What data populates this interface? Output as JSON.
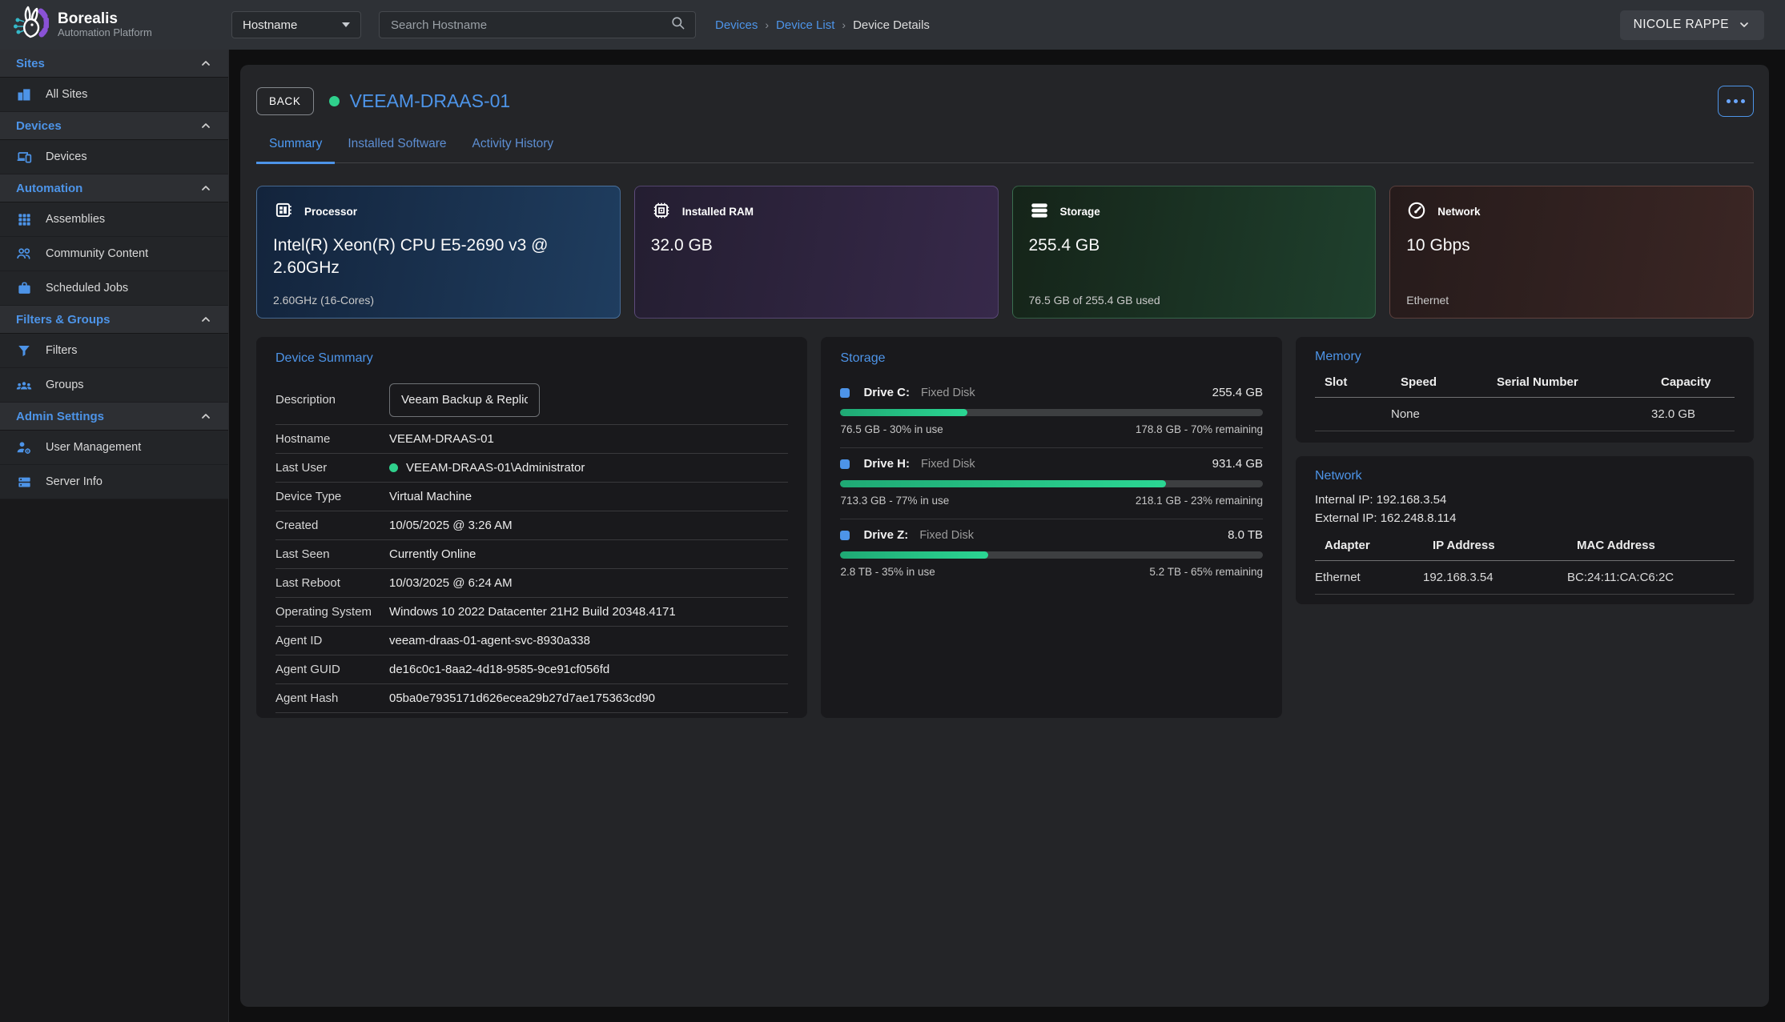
{
  "app": {
    "name": "Borealis",
    "subtitle": "Automation Platform"
  },
  "topbar": {
    "filter_select": {
      "value": "Hostname"
    },
    "search": {
      "placeholder": "Search Hostname"
    },
    "breadcrumbs": [
      {
        "label": "Devices"
      },
      {
        "label": "Device List"
      },
      {
        "label": "Device Details"
      }
    ],
    "user": {
      "name": "NICOLE RAPPE"
    }
  },
  "sidebar": {
    "sections": [
      {
        "label": "Sites",
        "items": [
          {
            "label": "All Sites",
            "icon": "buildings-icon"
          }
        ]
      },
      {
        "label": "Devices",
        "items": [
          {
            "label": "Devices",
            "icon": "devices-icon"
          }
        ]
      },
      {
        "label": "Automation",
        "items": [
          {
            "label": "Assemblies",
            "icon": "grid-icon"
          },
          {
            "label": "Community Content",
            "icon": "people-icon"
          },
          {
            "label": "Scheduled Jobs",
            "icon": "briefcase-icon"
          }
        ]
      },
      {
        "label": "Filters & Groups",
        "items": [
          {
            "label": "Filters",
            "icon": "filter-icon"
          },
          {
            "label": "Groups",
            "icon": "groups-icon"
          }
        ]
      },
      {
        "label": "Admin Settings",
        "items": [
          {
            "label": "User Management",
            "icon": "user-gear-icon"
          },
          {
            "label": "Server Info",
            "icon": "server-icon"
          }
        ]
      }
    ]
  },
  "device": {
    "back_label": "BACK",
    "name": "VEEAM-DRAAS-01",
    "status": "online",
    "tabs": [
      {
        "label": "Summary",
        "active": true
      },
      {
        "label": "Installed Software",
        "active": false
      },
      {
        "label": "Activity History",
        "active": false
      }
    ]
  },
  "stat_cards": [
    {
      "icon": "cpu-icon",
      "label": "Processor",
      "value": "Intel(R) Xeon(R) CPU E5-2690 v3 @ 2.60GHz",
      "subtext": "2.60GHz (16-Cores)",
      "accent": "blue"
    },
    {
      "icon": "ram-icon",
      "label": "Installed RAM",
      "value": "32.0 GB",
      "subtext": "",
      "accent": "purple"
    },
    {
      "icon": "storage-icon",
      "label": "Storage",
      "value": "255.4 GB",
      "subtext": "76.5 GB of 255.4 GB used",
      "accent": "green"
    },
    {
      "icon": "network-icon",
      "label": "Network",
      "value": "10 Gbps",
      "subtext": "Ethernet",
      "accent": "red"
    }
  ],
  "device_summary": {
    "title": "Device Summary",
    "description": {
      "label": "Description",
      "value": "Veeam Backup & Replication"
    },
    "rows": [
      {
        "label": "Hostname",
        "value": "VEEAM-DRAAS-01",
        "status_dot": false
      },
      {
        "label": "Last User",
        "value": "VEEAM-DRAAS-01\\Administrator",
        "status_dot": true
      },
      {
        "label": "Device Type",
        "value": "Virtual Machine",
        "status_dot": false
      },
      {
        "label": "Created",
        "value": "10/05/2025 @ 3:26 AM",
        "status_dot": false
      },
      {
        "label": "Last Seen",
        "value": "Currently Online",
        "status_dot": false
      },
      {
        "label": "Last Reboot",
        "value": "10/03/2025 @ 6:24 AM",
        "status_dot": false
      },
      {
        "label": "Operating System",
        "value": "Windows 10 2022 Datacenter 21H2 Build 20348.4171",
        "status_dot": false
      },
      {
        "label": "Agent ID",
        "value": "veeam-draas-01-agent-svc-8930a338",
        "status_dot": false
      },
      {
        "label": "Agent GUID",
        "value": "de16c0c1-8aa2-4d18-9585-9ce91cf056fd",
        "status_dot": false
      },
      {
        "label": "Agent Hash",
        "value": "05ba0e7935171d626ecea29b27d7ae175363cd90",
        "status_dot": false
      }
    ]
  },
  "storage_panel": {
    "title": "Storage",
    "drives": [
      {
        "name": "Drive C:",
        "type": "Fixed Disk",
        "capacity": "255.4 GB",
        "used_pct": 30,
        "used_text": "76.5 GB - 30% in use",
        "remaining_text": "178.8 GB - 70% remaining"
      },
      {
        "name": "Drive H:",
        "type": "Fixed Disk",
        "capacity": "931.4 GB",
        "used_pct": 77,
        "used_text": "713.3 GB - 77% in use",
        "remaining_text": "218.1 GB - 23% remaining"
      },
      {
        "name": "Drive Z:",
        "type": "Fixed Disk",
        "capacity": "8.0 TB",
        "used_pct": 35,
        "used_text": "2.8 TB - 35% in use",
        "remaining_text": "5.2 TB - 65% remaining"
      }
    ]
  },
  "memory_panel": {
    "title": "Memory",
    "columns": [
      "Slot",
      "Speed",
      "Serial Number",
      "Capacity"
    ],
    "rows": [
      {
        "slot": "",
        "speed": "None",
        "serial": "",
        "capacity": "32.0 GB"
      }
    ]
  },
  "network_panel": {
    "title": "Network",
    "internal_ip": "Internal IP: 192.168.3.54",
    "external_ip": "External IP: 162.248.8.114",
    "columns": [
      "Adapter",
      "IP Address",
      "MAC Address"
    ],
    "rows": [
      {
        "adapter": "Ethernet",
        "ip": "192.168.3.54",
        "mac": "BC:24:11:CA:C6:2C"
      }
    ]
  },
  "colors": {
    "accent_blue": "#4d94e8",
    "status_green": "#2fd08c",
    "progress_green": "#27c98a",
    "card_blue_from": "#13243c",
    "card_blue_to": "#1f3d5f",
    "card_purple_from": "#241e31",
    "card_purple_to": "#37294a",
    "card_green_from": "#152419",
    "card_green_to": "#1f402d",
    "card_red_from": "#261b1b",
    "card_red_to": "#3b2624",
    "panel_bg": "#19191c",
    "content_bg": "#242528",
    "topbar_bg": "#2e3136"
  }
}
